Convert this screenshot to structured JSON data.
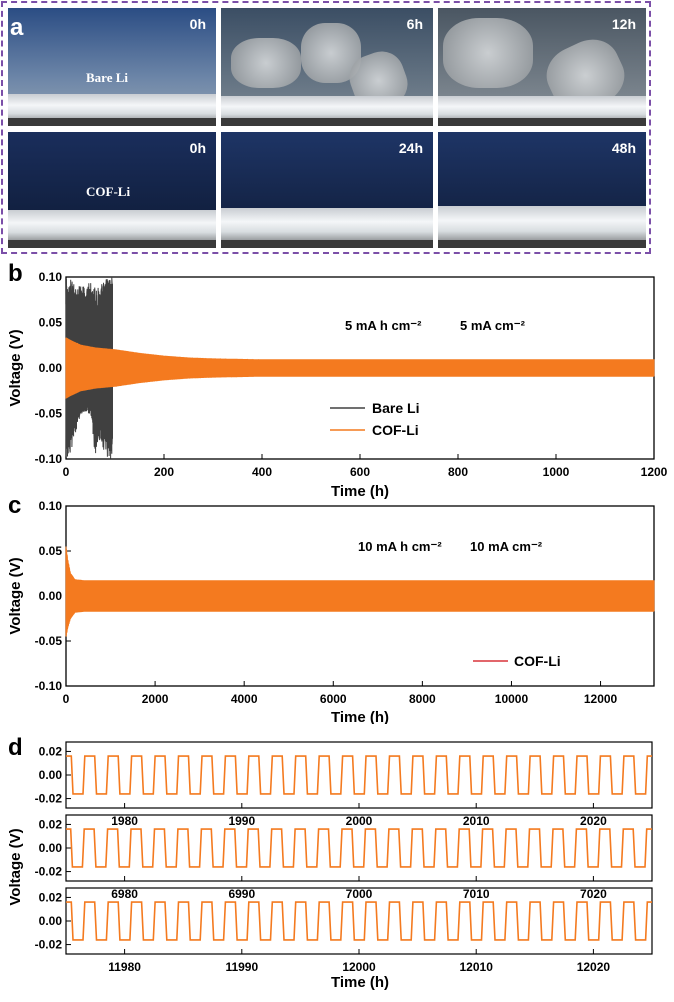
{
  "panel_labels": {
    "a": "a",
    "b": "b",
    "c": "c",
    "d": "d"
  },
  "photos": {
    "bare_row": {
      "sample_label": "Bare Li",
      "times": [
        "0h",
        "6h",
        "12h"
      ]
    },
    "cof_row": {
      "sample_label": "COF-Li",
      "times": [
        "0h",
        "24h",
        "48h"
      ]
    }
  },
  "colors": {
    "bare": "#404040",
    "cof": "#f47a1f",
    "cof_legend_c": "#d9343a",
    "frame": "#7b4fa8"
  },
  "chart_data": [
    {
      "id": "b",
      "type": "line",
      "xlabel": "Time (h)",
      "ylabel": "Voltage (V)",
      "xlim": [
        0,
        1200
      ],
      "ylim": [
        -0.1,
        0.1
      ],
      "xticks": [
        0,
        200,
        400,
        600,
        800,
        1000,
        1200
      ],
      "yticks": [
        -0.1,
        -0.05,
        0.0,
        0.05,
        0.1
      ],
      "ytick_labels": [
        "-0.10",
        "-0.05",
        "0.00",
        "0.05",
        "0.10"
      ],
      "annotations": [
        "5 mA h cm⁻²",
        "5 mA cm⁻²"
      ],
      "legend": "center-left",
      "series": [
        {
          "name": "Bare Li",
          "x": [
            0,
            10,
            20,
            30,
            40,
            50,
            60,
            70,
            80,
            85,
            90,
            95
          ],
          "y_max": [
            0.1,
            0.1,
            0.09,
            0.09,
            0.09,
            0.1,
            0.09,
            0.09,
            0.1,
            0.1,
            0.1,
            0.1
          ],
          "y_min": [
            -0.1,
            -0.1,
            -0.07,
            -0.05,
            -0.05,
            -0.05,
            -0.1,
            -0.08,
            -0.1,
            -0.1,
            -0.1,
            -0.1
          ]
        },
        {
          "name": "COF-Li",
          "x": [
            0,
            10,
            30,
            60,
            100,
            150,
            200,
            250,
            300,
            400,
            600,
            800,
            1000,
            1200
          ],
          "y_max": [
            0.033,
            0.03,
            0.025,
            0.022,
            0.02,
            0.016,
            0.013,
            0.011,
            0.01,
            0.009,
            0.009,
            0.009,
            0.009,
            0.009
          ],
          "y_min": [
            -0.033,
            -0.03,
            -0.025,
            -0.022,
            -0.02,
            -0.016,
            -0.013,
            -0.011,
            -0.01,
            -0.009,
            -0.009,
            -0.009,
            -0.009,
            -0.009
          ]
        }
      ]
    },
    {
      "id": "c",
      "type": "line",
      "xlabel": "Time (h)",
      "ylabel": "Voltage (V)",
      "xlim": [
        0,
        13200
      ],
      "ylim": [
        -0.1,
        0.1
      ],
      "xticks": [
        0,
        2000,
        4000,
        6000,
        8000,
        10000,
        12000
      ],
      "yticks": [
        -0.1,
        -0.05,
        0.0,
        0.05,
        0.1
      ],
      "ytick_labels": [
        "-0.10",
        "-0.05",
        "0.00",
        "0.05",
        "0.10"
      ],
      "annotations": [
        "10 mA h cm⁻²",
        "10 mA cm⁻²"
      ],
      "legend": "bottom-right",
      "series": [
        {
          "name": "COF-Li",
          "x": [
            0,
            40,
            100,
            200,
            400,
            1000,
            4000,
            8000,
            12000,
            13200
          ],
          "y_max": [
            0.055,
            0.04,
            0.025,
            0.018,
            0.017,
            0.017,
            0.017,
            0.017,
            0.017,
            0.017
          ],
          "y_min": [
            -0.045,
            -0.035,
            -0.025,
            -0.018,
            -0.017,
            -0.017,
            -0.017,
            -0.017,
            -0.017,
            -0.017
          ]
        }
      ]
    },
    {
      "id": "d",
      "type": "line",
      "xlabel": "Time (h)",
      "ylabel": "Voltage (V)",
      "yticks": [
        -0.02,
        0.0,
        0.02
      ],
      "ytick_labels": [
        "-0.02",
        "0.00",
        "0.02"
      ],
      "ylim": [
        -0.028,
        0.028
      ],
      "cycle_period_h": 2,
      "amplitude": 0.016,
      "panels": [
        {
          "xlim": [
            1975,
            2025
          ],
          "xticks": [
            1980,
            1990,
            2000,
            2010,
            2020
          ]
        },
        {
          "xlim": [
            6975,
            7025
          ],
          "xticks": [
            6980,
            6990,
            7000,
            7010,
            7020
          ]
        },
        {
          "xlim": [
            11975,
            12025
          ],
          "xticks": [
            11980,
            11990,
            12000,
            12010,
            12020
          ]
        }
      ]
    }
  ]
}
